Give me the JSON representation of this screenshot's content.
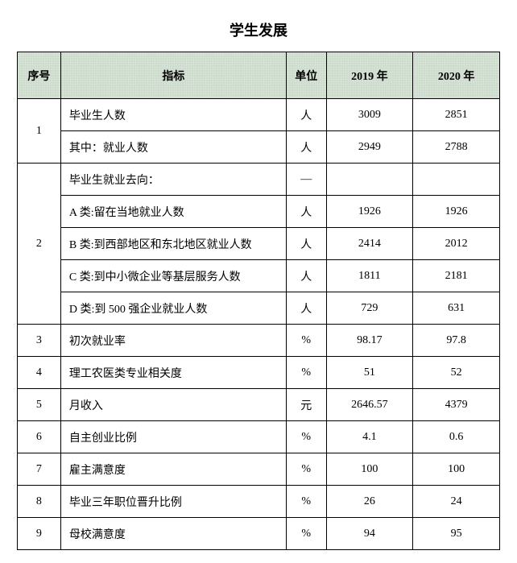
{
  "title": "学生发展",
  "headers": {
    "seq": "序号",
    "indicator": "指标",
    "unit": "单位",
    "year2019": "2019 年",
    "year2020": "2020 年"
  },
  "groups": [
    {
      "seq": "1",
      "rows": [
        {
          "indicator": "毕业生人数",
          "unit": "人",
          "y2019": "3009",
          "y2020": "2851"
        },
        {
          "indicator": "其中：就业人数",
          "unit": "人",
          "y2019": "2949",
          "y2020": "2788"
        }
      ]
    },
    {
      "seq": "2",
      "rows": [
        {
          "indicator": "毕业生就业去向：",
          "unit": "—",
          "y2019": "",
          "y2020": ""
        },
        {
          "indicator": "A 类:留在当地就业人数",
          "unit": "人",
          "y2019": "1926",
          "y2020": "1926"
        },
        {
          "indicator": "B 类:到西部地区和东北地区就业人数",
          "unit": "人",
          "y2019": "2414",
          "y2020": "2012"
        },
        {
          "indicator": "C 类:到中小微企业等基层服务人数",
          "unit": "人",
          "y2019": "1811",
          "y2020": "2181"
        },
        {
          "indicator": "D 类:到 500 强企业就业人数",
          "unit": "人",
          "y2019": "729",
          "y2020": "631"
        }
      ]
    },
    {
      "seq": "3",
      "rows": [
        {
          "indicator": "初次就业率",
          "unit": "%",
          "y2019": "98.17",
          "y2020": "97.8"
        }
      ]
    },
    {
      "seq": "4",
      "rows": [
        {
          "indicator": "理工农医类专业相关度",
          "unit": "%",
          "y2019": "51",
          "y2020": "52"
        }
      ]
    },
    {
      "seq": "5",
      "rows": [
        {
          "indicator": "月收入",
          "unit": "元",
          "y2019": "2646.57",
          "y2020": "4379"
        }
      ]
    },
    {
      "seq": "6",
      "rows": [
        {
          "indicator": "自主创业比例",
          "unit": "%",
          "y2019": "4.1",
          "y2020": "0.6"
        }
      ]
    },
    {
      "seq": "7",
      "rows": [
        {
          "indicator": "雇主满意度",
          "unit": "%",
          "y2019": "100",
          "y2020": "100"
        }
      ]
    },
    {
      "seq": "8",
      "rows": [
        {
          "indicator": "毕业三年职位晋升比例",
          "unit": "%",
          "y2019": "26",
          "y2020": "24"
        }
      ]
    },
    {
      "seq": "9",
      "rows": [
        {
          "indicator": "母校满意度",
          "unit": "%",
          "y2019": "94",
          "y2020": "95"
        }
      ]
    }
  ],
  "style": {
    "header_bg": "#d5e3d5",
    "border_color": "#000000",
    "font_family": "SimSun",
    "title_fontsize": 18,
    "cell_fontsize": 14,
    "col_widths": {
      "seq": 50,
      "indicator": 260,
      "unit": 46,
      "year": 100
    }
  }
}
